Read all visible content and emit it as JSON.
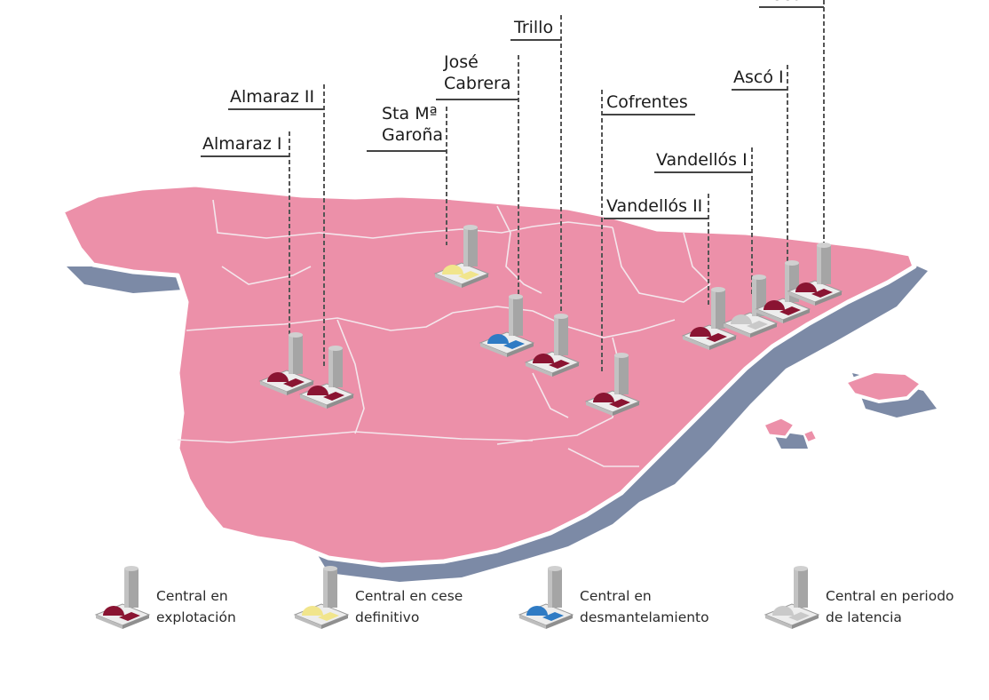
{
  "colors": {
    "land": "#ec90a9",
    "coast_outline": "#ffffff",
    "shadow": "#7c8aa6",
    "operating": "#8a1432",
    "ceased": "#f1e58c",
    "dismantling": "#2f7bc4",
    "latency": "#c9c9c9",
    "tower": "#a2a2a2",
    "base": "#e6e6e6"
  },
  "plants": [
    {
      "id": "almaraz-i",
      "label_lines": [
        "Almaraz I"
      ],
      "status": "operating"
    },
    {
      "id": "almaraz-ii",
      "label_lines": [
        "Almaraz II"
      ],
      "status": "operating"
    },
    {
      "id": "sta-garona",
      "label_lines": [
        "Sta Mª",
        "Garoña"
      ],
      "status": "ceased"
    },
    {
      "id": "jose-cabrera",
      "label_lines": [
        "José",
        "Cabrera"
      ],
      "status": "dismantling"
    },
    {
      "id": "trillo",
      "label_lines": [
        "Trillo"
      ],
      "status": "operating"
    },
    {
      "id": "cofrentes",
      "label_lines": [
        "Cofrentes"
      ],
      "status": "operating"
    },
    {
      "id": "vandellos-ii",
      "label_lines": [
        "Vandellós II"
      ],
      "status": "operating"
    },
    {
      "id": "vandellos-i",
      "label_lines": [
        "Vandellós I"
      ],
      "status": "latency"
    },
    {
      "id": "asco-i",
      "label_lines": [
        "Ascó I"
      ],
      "status": "operating"
    },
    {
      "id": "asco-ii",
      "label_lines": [
        "Ascó II"
      ],
      "status": "operating"
    }
  ],
  "legend": [
    {
      "status": "operating",
      "lines": [
        "Central en",
        "explotación"
      ]
    },
    {
      "status": "ceased",
      "lines": [
        "Central en cese",
        "definitivo"
      ]
    },
    {
      "status": "dismantling",
      "lines": [
        "Central en",
        "desmantelamiento"
      ]
    },
    {
      "status": "latency",
      "lines": [
        "Central en periodo",
        "de latencia"
      ]
    }
  ]
}
